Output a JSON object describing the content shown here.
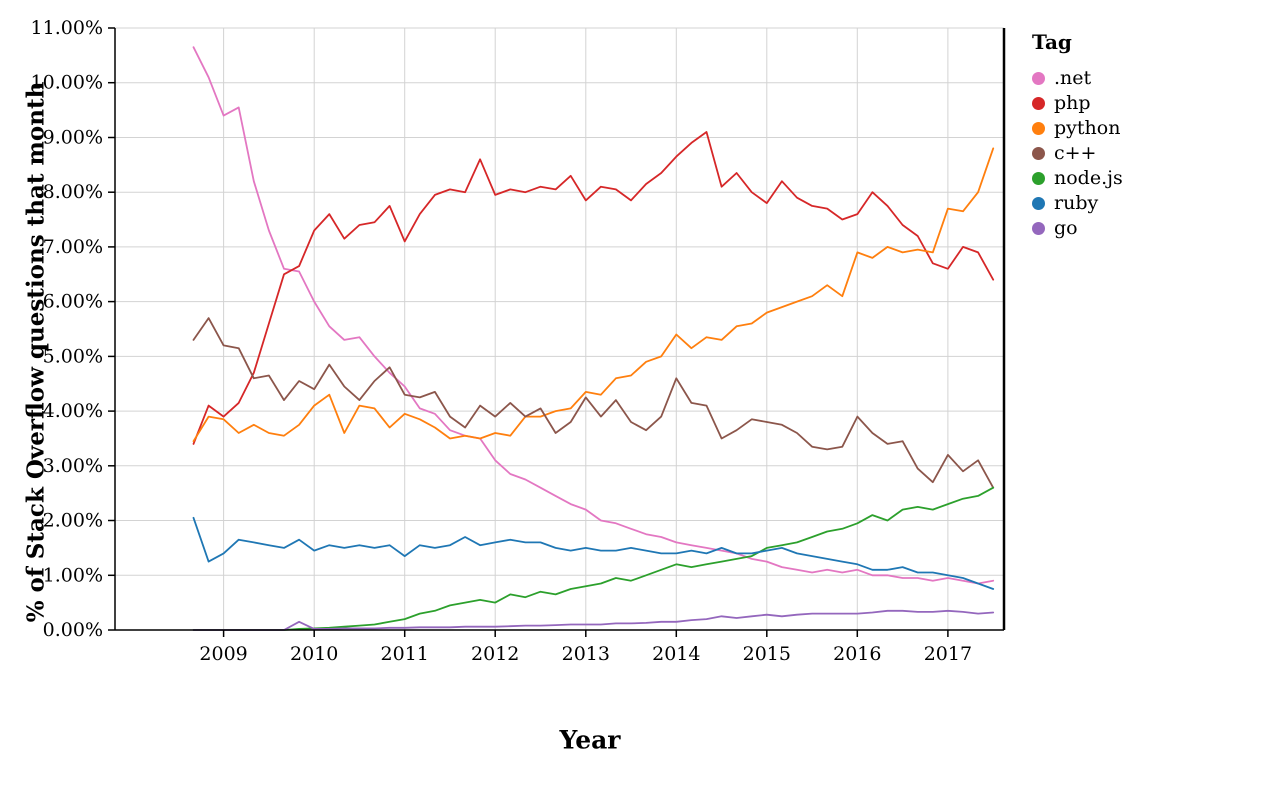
{
  "chart_data": {
    "type": "line",
    "title": "",
    "xlabel": "Year",
    "ylabel": "% of Stack Overflow questions that month",
    "legend_title": "Tag",
    "legend_position": "right",
    "grid": true,
    "grid_color": "#d3d3d3",
    "axis_color": "#000000",
    "xlim": [
      2007.8,
      2017.62
    ],
    "ylim": [
      0,
      11
    ],
    "x_start": 2008.6667,
    "x_step": 0.16667,
    "x_ticks": [
      {
        "v": 2009,
        "label": "2009"
      },
      {
        "v": 2010,
        "label": "2010"
      },
      {
        "v": 2011,
        "label": "2011"
      },
      {
        "v": 2012,
        "label": "2012"
      },
      {
        "v": 2013,
        "label": "2013"
      },
      {
        "v": 2014,
        "label": "2014"
      },
      {
        "v": 2015,
        "label": "2015"
      },
      {
        "v": 2016,
        "label": "2016"
      },
      {
        "v": 2017,
        "label": "2017"
      }
    ],
    "y_ticks": [
      {
        "v": 0,
        "label": "0.00%"
      },
      {
        "v": 1,
        "label": "1.00%"
      },
      {
        "v": 2,
        "label": "2.00%"
      },
      {
        "v": 3,
        "label": "3.00%"
      },
      {
        "v": 4,
        "label": "4.00%"
      },
      {
        "v": 5,
        "label": "5.00%"
      },
      {
        "v": 6,
        "label": "6.00%"
      },
      {
        "v": 7,
        "label": "7.00%"
      },
      {
        "v": 8,
        "label": "8.00%"
      },
      {
        "v": 9,
        "label": "9.00%"
      },
      {
        "v": 10,
        "label": "10.00%"
      },
      {
        "v": 11,
        "label": "11.00%"
      }
    ],
    "series": [
      {
        "name": ".net",
        "color": "#e377c2",
        "values": [
          10.65,
          10.1,
          9.4,
          9.55,
          8.2,
          7.3,
          6.6,
          6.55,
          6.0,
          5.55,
          5.3,
          5.35,
          5.0,
          4.7,
          4.45,
          4.05,
          3.95,
          3.65,
          3.55,
          3.5,
          3.1,
          2.85,
          2.75,
          2.6,
          2.45,
          2.3,
          2.2,
          2.0,
          1.95,
          1.85,
          1.75,
          1.7,
          1.6,
          1.55,
          1.5,
          1.45,
          1.4,
          1.3,
          1.25,
          1.15,
          1.1,
          1.05,
          1.1,
          1.05,
          1.1,
          1.0,
          1.0,
          0.95,
          0.95,
          0.9,
          0.95,
          0.9,
          0.85,
          0.9
        ]
      },
      {
        "name": "php",
        "color": "#d62728",
        "values": [
          3.4,
          4.1,
          3.9,
          4.15,
          4.7,
          5.6,
          6.5,
          6.65,
          7.3,
          7.6,
          7.15,
          7.4,
          7.45,
          7.75,
          7.1,
          7.6,
          7.95,
          8.05,
          8.0,
          8.6,
          7.95,
          8.05,
          8.0,
          8.1,
          8.05,
          8.3,
          7.85,
          8.1,
          8.05,
          7.85,
          8.15,
          8.35,
          8.65,
          8.9,
          9.1,
          8.1,
          8.35,
          8.0,
          7.8,
          8.2,
          7.9,
          7.75,
          7.7,
          7.5,
          7.6,
          8.0,
          7.75,
          7.4,
          7.2,
          6.7,
          6.6,
          7.0,
          6.9,
          6.4
        ]
      },
      {
        "name": "python",
        "color": "#ff7f0e",
        "values": [
          3.45,
          3.9,
          3.85,
          3.6,
          3.75,
          3.6,
          3.55,
          3.75,
          4.1,
          4.3,
          3.6,
          4.1,
          4.05,
          3.7,
          3.95,
          3.85,
          3.7,
          3.5,
          3.55,
          3.5,
          3.6,
          3.55,
          3.9,
          3.9,
          4.0,
          4.05,
          4.35,
          4.3,
          4.6,
          4.65,
          4.9,
          5.0,
          5.4,
          5.15,
          5.35,
          5.3,
          5.55,
          5.6,
          5.8,
          5.9,
          6.0,
          6.1,
          6.3,
          6.1,
          6.9,
          6.8,
          7.0,
          6.9,
          6.95,
          6.9,
          7.7,
          7.65,
          8.0,
          8.8
        ]
      },
      {
        "name": "c++",
        "color": "#8c564b",
        "values": [
          5.3,
          5.7,
          5.2,
          5.15,
          4.6,
          4.65,
          4.2,
          4.55,
          4.4,
          4.85,
          4.45,
          4.2,
          4.55,
          4.8,
          4.3,
          4.25,
          4.35,
          3.9,
          3.7,
          4.1,
          3.9,
          4.15,
          3.9,
          4.05,
          3.6,
          3.8,
          4.25,
          3.9,
          4.2,
          3.8,
          3.65,
          3.9,
          4.6,
          4.15,
          4.1,
          3.5,
          3.65,
          3.85,
          3.8,
          3.75,
          3.6,
          3.35,
          3.3,
          3.35,
          3.9,
          3.6,
          3.4,
          3.45,
          2.95,
          2.7,
          3.2,
          2.9,
          3.1,
          2.6
        ]
      },
      {
        "name": "node.js",
        "color": "#2ca02c",
        "values": [
          0.0,
          0.0,
          0.0,
          0.0,
          0.0,
          0.0,
          0.0,
          0.02,
          0.03,
          0.04,
          0.06,
          0.08,
          0.1,
          0.15,
          0.2,
          0.3,
          0.35,
          0.45,
          0.5,
          0.55,
          0.5,
          0.65,
          0.6,
          0.7,
          0.65,
          0.75,
          0.8,
          0.85,
          0.95,
          0.9,
          1.0,
          1.1,
          1.2,
          1.15,
          1.2,
          1.25,
          1.3,
          1.35,
          1.5,
          1.55,
          1.6,
          1.7,
          1.8,
          1.85,
          1.95,
          2.1,
          2.0,
          2.2,
          2.25,
          2.2,
          2.3,
          2.4,
          2.45,
          2.6
        ]
      },
      {
        "name": "ruby",
        "color": "#1f77b4",
        "values": [
          2.05,
          1.25,
          1.4,
          1.65,
          1.6,
          1.55,
          1.5,
          1.65,
          1.45,
          1.55,
          1.5,
          1.55,
          1.5,
          1.55,
          1.35,
          1.55,
          1.5,
          1.55,
          1.7,
          1.55,
          1.6,
          1.65,
          1.6,
          1.6,
          1.5,
          1.45,
          1.5,
          1.45,
          1.45,
          1.5,
          1.45,
          1.4,
          1.4,
          1.45,
          1.4,
          1.5,
          1.4,
          1.4,
          1.45,
          1.5,
          1.4,
          1.35,
          1.3,
          1.25,
          1.2,
          1.1,
          1.1,
          1.15,
          1.05,
          1.05,
          1.0,
          0.95,
          0.85,
          0.75
        ]
      },
      {
        "name": "go",
        "color": "#9467bd",
        "values": [
          0.0,
          0.0,
          0.0,
          0.0,
          0.0,
          0.0,
          0.0,
          0.15,
          0.02,
          0.02,
          0.03,
          0.03,
          0.03,
          0.04,
          0.04,
          0.05,
          0.05,
          0.05,
          0.06,
          0.06,
          0.06,
          0.07,
          0.08,
          0.08,
          0.09,
          0.1,
          0.1,
          0.1,
          0.12,
          0.12,
          0.13,
          0.15,
          0.15,
          0.18,
          0.2,
          0.25,
          0.22,
          0.25,
          0.28,
          0.25,
          0.28,
          0.3,
          0.3,
          0.3,
          0.3,
          0.32,
          0.35,
          0.35,
          0.33,
          0.33,
          0.35,
          0.33,
          0.3,
          0.32
        ]
      }
    ]
  }
}
